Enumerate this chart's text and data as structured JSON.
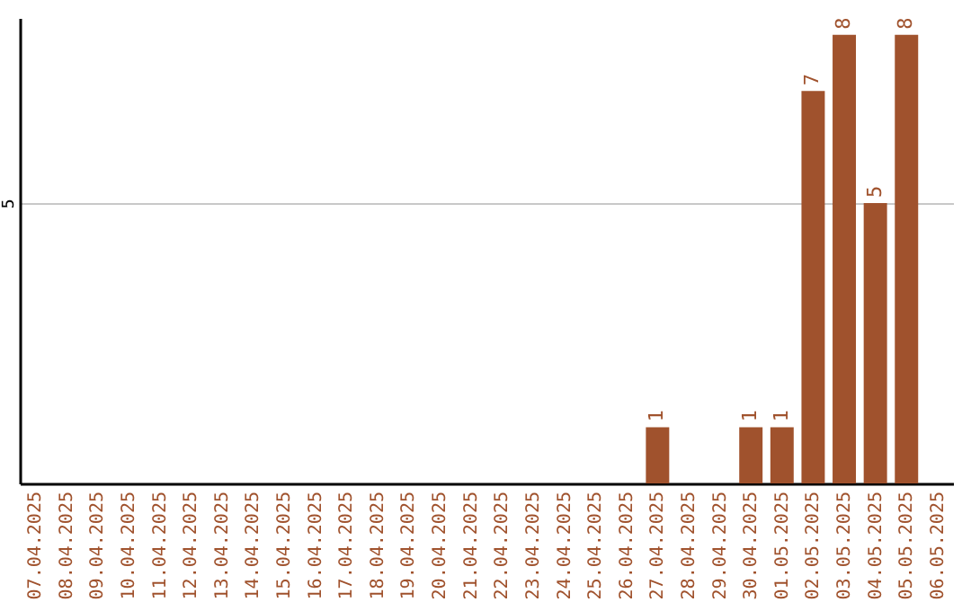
{
  "chart_data": {
    "type": "bar",
    "categories": [
      "07.04.2025",
      "08.04.2025",
      "09.04.2025",
      "10.04.2025",
      "11.04.2025",
      "12.04.2025",
      "13.04.2025",
      "14.04.2025",
      "15.04.2025",
      "16.04.2025",
      "17.04.2025",
      "18.04.2025",
      "19.04.2025",
      "20.04.2025",
      "21.04.2025",
      "22.04.2025",
      "23.04.2025",
      "24.04.2025",
      "25.04.2025",
      "26.04.2025",
      "27.04.2025",
      "28.04.2025",
      "29.04.2025",
      "30.04.2025",
      "01.05.2025",
      "02.05.2025",
      "03.05.2025",
      "04.05.2025",
      "05.05.2025",
      "06.05.2025"
    ],
    "values": [
      null,
      null,
      null,
      null,
      null,
      null,
      null,
      null,
      null,
      null,
      null,
      null,
      null,
      null,
      null,
      null,
      null,
      null,
      null,
      null,
      1,
      null,
      null,
      1,
      1,
      7,
      8,
      5,
      8,
      null
    ],
    "color": "#a0522d",
    "ylim": [
      0,
      8.3
    ],
    "yticks": [
      5
    ],
    "grid": "y",
    "data_labels": true
  }
}
